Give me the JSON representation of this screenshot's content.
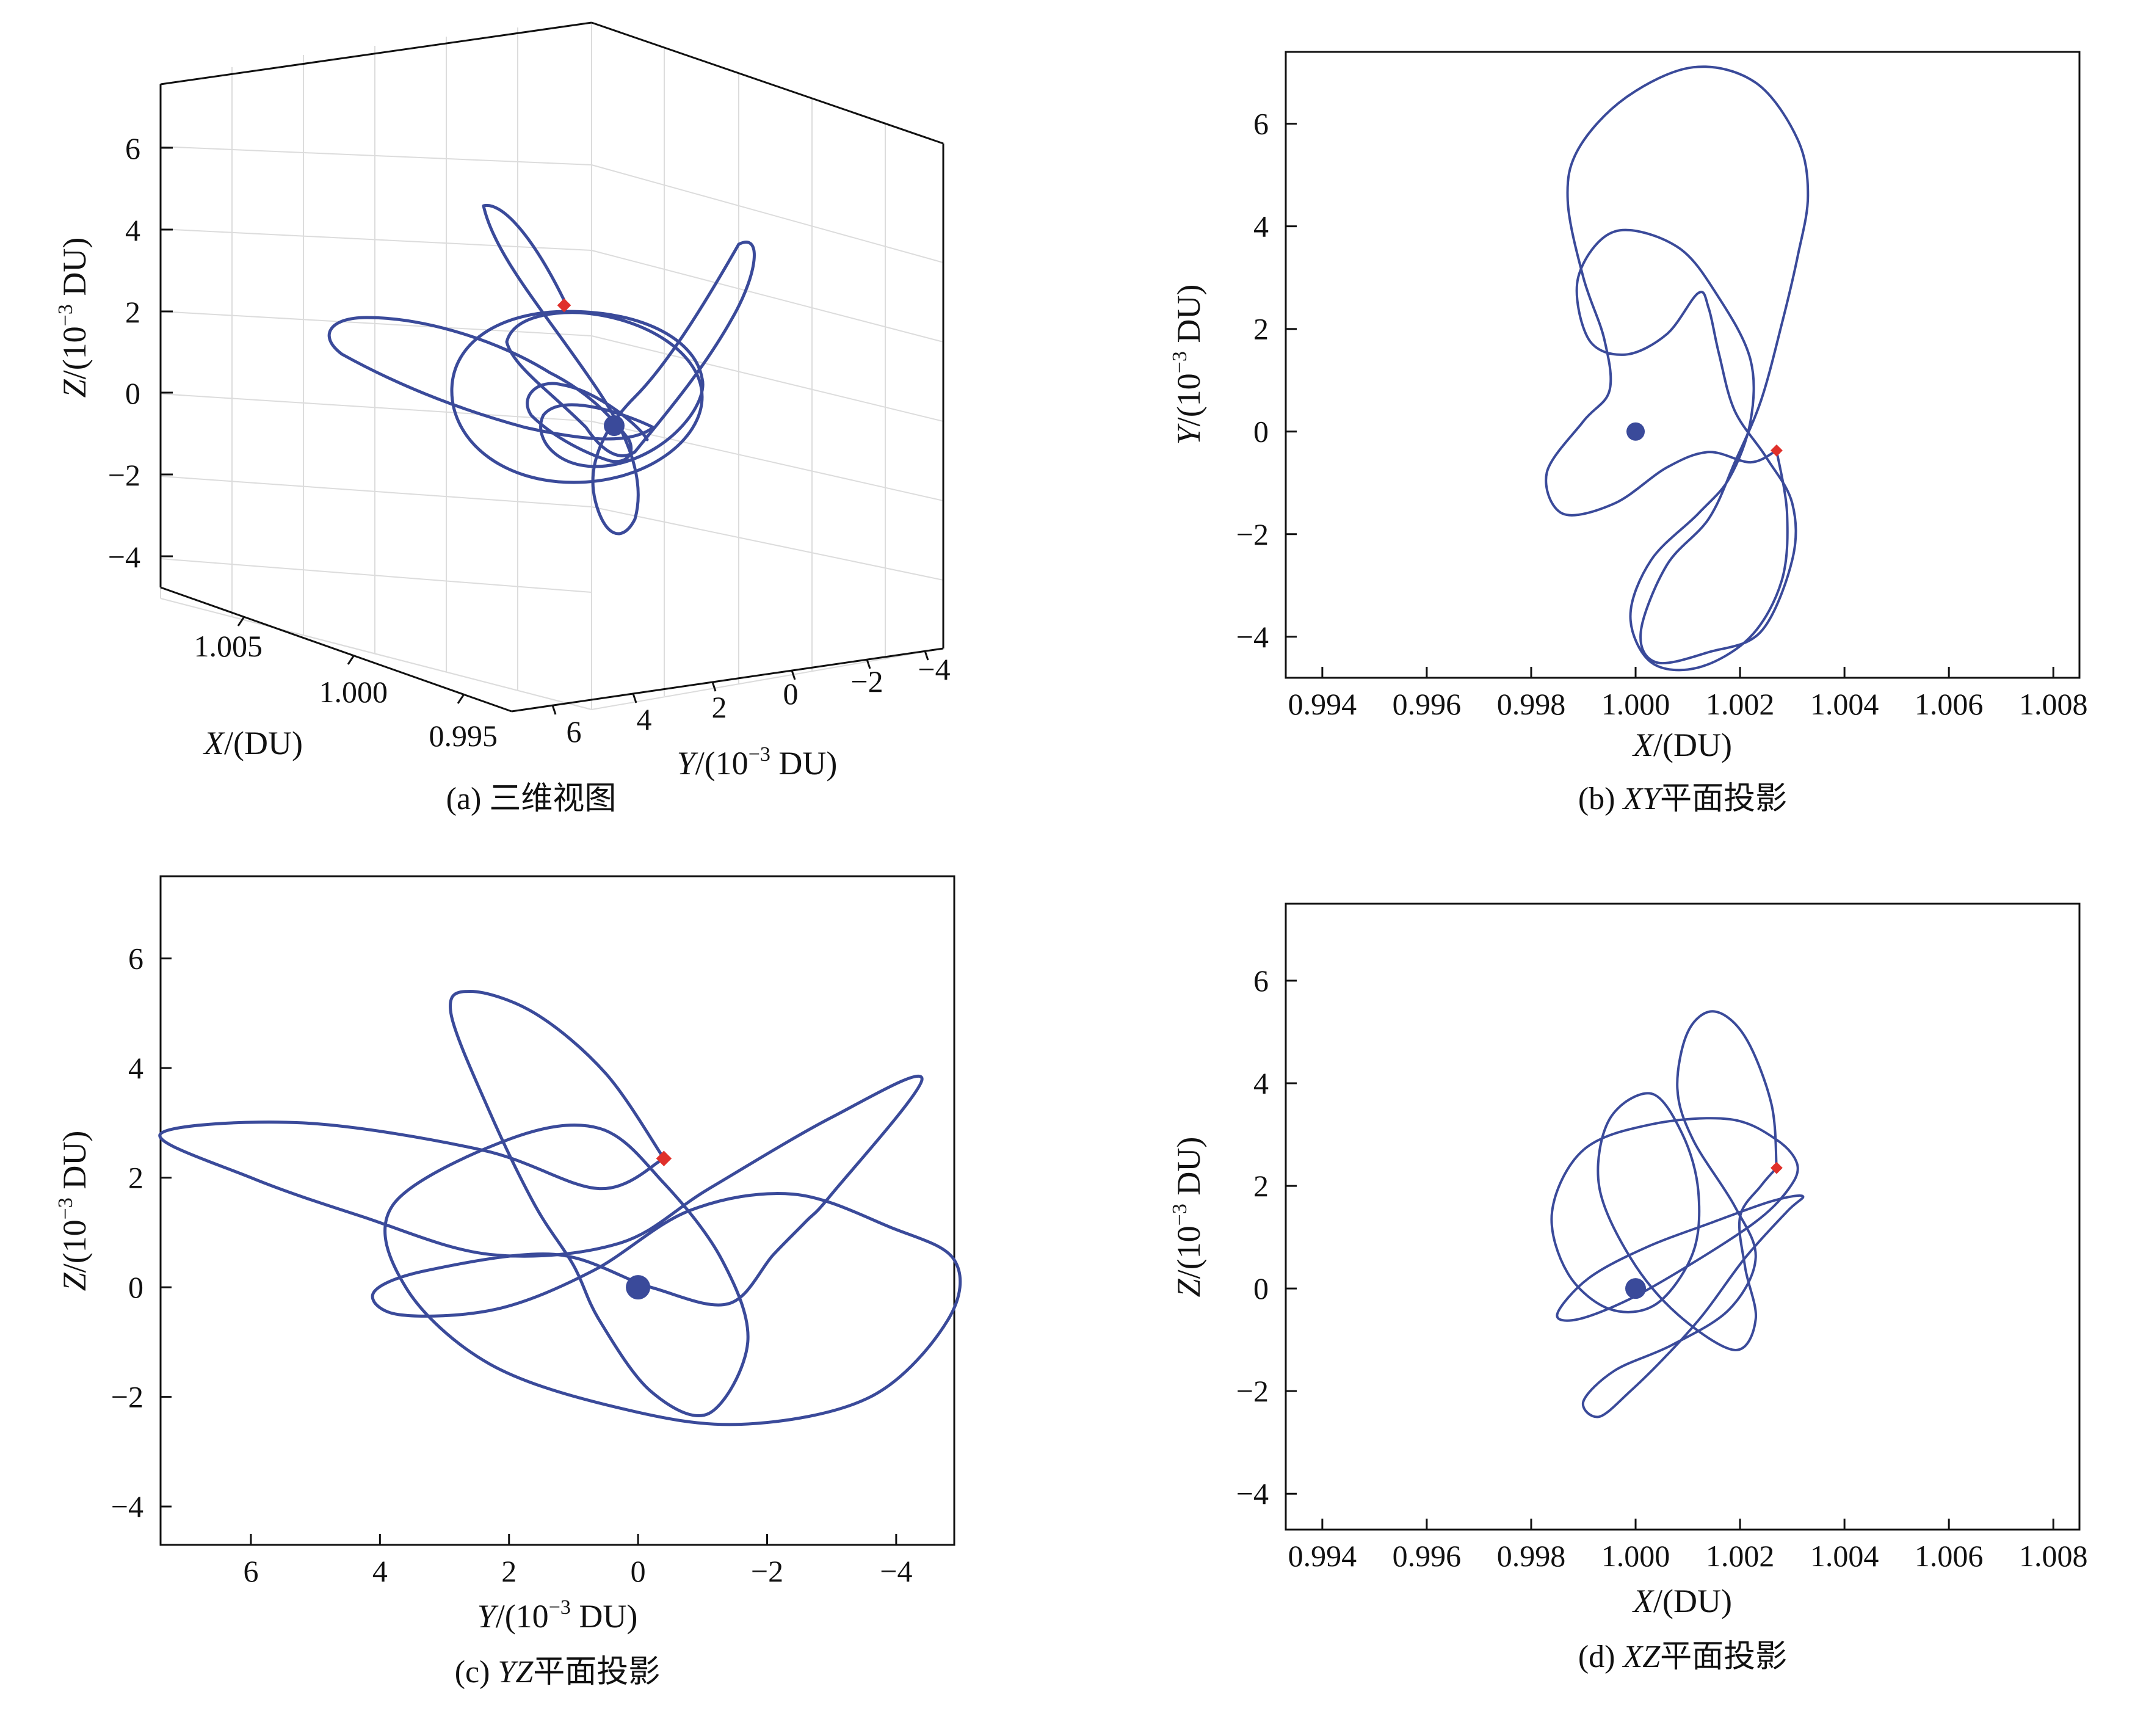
{
  "figure": {
    "panels": {
      "a": {
        "caption_prefix": "(a) ",
        "caption_text": "三维视图",
        "x_label_var": "X",
        "x_label_unit": "/(DU)",
        "y_label_var": "Y",
        "y_label_unit_pre": "/(10",
        "y_label_exp": "−3",
        "y_label_unit_post": " DU)",
        "z_label_var": "Z",
        "z_label_unit_pre": "/(10",
        "z_label_exp": "−3",
        "z_label_unit_post": " DU)",
        "z_ticks": [
          "6",
          "4",
          "2",
          "0",
          "−2",
          "−4"
        ],
        "x_ticks": [
          "1.005",
          "1.000",
          "0.995"
        ],
        "y_ticks": [
          "6",
          "4",
          "2",
          "0",
          "−2",
          "−4"
        ]
      },
      "b": {
        "caption_prefix": "(b) ",
        "caption_var": "XY",
        "caption_text": "平面投影",
        "x_label_var": "X",
        "x_label_unit": "/(DU)",
        "y_label_var": "Y",
        "y_label_unit_pre": "/(10",
        "y_label_exp": "−3",
        "y_label_unit_post": " DU)",
        "x_ticks": [
          "0.994",
          "0.996",
          "0.998",
          "1.000",
          "1.002",
          "1.004",
          "1.006",
          "1.008"
        ],
        "y_ticks": [
          "6",
          "4",
          "2",
          "0",
          "−2",
          "−4"
        ]
      },
      "c": {
        "caption_prefix": "(c) ",
        "caption_var": "YZ",
        "caption_text": "平面投影",
        "x_label_var": "Y",
        "x_label_unit_pre": "/(10",
        "x_label_exp": "−3",
        "x_label_unit_post": " DU)",
        "y_label_var": "Z",
        "y_label_unit_pre": "/(10",
        "y_label_exp": "−3",
        "y_label_unit_post": " DU)",
        "x_ticks": [
          "6",
          "4",
          "2",
          "0",
          "−2",
          "−4"
        ],
        "y_ticks": [
          "6",
          "4",
          "2",
          "0",
          "−2",
          "−4"
        ]
      },
      "d": {
        "caption_prefix": "(d) ",
        "caption_var": "XZ",
        "caption_text": "平面投影",
        "x_label_var": "X",
        "x_label_unit": "/(DU)",
        "y_label_var": "Z",
        "y_label_unit_pre": "/(10",
        "y_label_exp": "−3",
        "y_label_unit_post": " DU)",
        "x_ticks": [
          "0.994",
          "0.996",
          "0.998",
          "1.000",
          "1.002",
          "1.004",
          "1.006",
          "1.008"
        ],
        "y_ticks": [
          "6",
          "4",
          "2",
          "0",
          "−2",
          "−4"
        ]
      }
    },
    "colors": {
      "orbit": "#3a4a9a",
      "start_marker": "#e0302a",
      "central_body": "#3a4a9a"
    }
  },
  "chart_data": [
    {
      "type": "line",
      "panel": "a",
      "title": "(a) 三维视图",
      "xlabel": "X/(DU)",
      "ylabel": "Y/(10−3 DU)",
      "zlabel": "Z/(10−3 DU)",
      "xlim": [
        0.995,
        1.007
      ],
      "ylim": [
        6.5,
        -4.5
      ],
      "zlim": [
        -4.7,
        7.5
      ],
      "grid": true,
      "projection": "3d",
      "central_body": {
        "x": 1.0,
        "y": 0.0,
        "z": 0.0
      },
      "start_point": {
        "x": 1.0027,
        "y": -0.4,
        "z": 2.35
      }
    },
    {
      "type": "line",
      "panel": "b",
      "title": "(b) XY平面投影",
      "xlabel": "X/(DU)",
      "ylabel": "Y/(10−3 DU)",
      "xlim": [
        0.9933,
        1.0085
      ],
      "ylim": [
        -4.8,
        7.4
      ],
      "grid": false,
      "central_body": {
        "x": 1.0,
        "y": 0.0
      },
      "start_point": {
        "x": 1.0027,
        "y": -0.37
      },
      "series": [
        {
          "values": [
            [
              1.0027,
              -0.37
            ],
            [
              1.0029,
              -1.6
            ],
            [
              1.0028,
              -2.9
            ],
            [
              1.0022,
              -4.0
            ],
            [
              1.0012,
              -4.6
            ],
            [
              1.0003,
              -4.5
            ],
            [
              0.9999,
              -3.6
            ],
            [
              1.0003,
              -2.5
            ],
            [
              1.0012,
              -1.6
            ],
            [
              1.0018,
              -0.9
            ],
            [
              1.0022,
              0.2
            ],
            [
              1.0022,
              1.4
            ],
            [
              1.0016,
              2.6
            ],
            [
              1.0008,
              3.6
            ],
            [
              0.9996,
              3.9
            ],
            [
              0.9989,
              3.0
            ],
            [
              0.9991,
              1.8
            ],
            [
              0.9998,
              1.5
            ],
            [
              1.0006,
              1.9
            ],
            [
              1.0012,
              2.7
            ],
            [
              1.0014,
              2.4
            ],
            [
              1.0016,
              1.5
            ],
            [
              1.0019,
              0.4
            ],
            [
              1.0025,
              -0.5
            ],
            [
              1.003,
              -1.4
            ],
            [
              1.003,
              -2.5
            ],
            [
              1.0024,
              -3.9
            ],
            [
              1.0014,
              -4.3
            ],
            [
              1.0004,
              -4.5
            ],
            [
              1.0001,
              -3.9
            ],
            [
              1.0006,
              -2.6
            ],
            [
              1.0014,
              -1.7
            ],
            [
              1.0019,
              -0.6
            ],
            [
              1.0024,
              0.6
            ],
            [
              1.0028,
              2.1
            ],
            [
              1.0031,
              3.4
            ],
            [
              1.0033,
              4.6
            ],
            [
              1.0031,
              5.7
            ],
            [
              1.0023,
              6.8
            ],
            [
              1.0011,
              7.1
            ],
            [
              0.9998,
              6.5
            ],
            [
              0.9989,
              5.5
            ],
            [
              0.9987,
              4.5
            ],
            [
              0.999,
              3.0
            ],
            [
              0.9994,
              1.8
            ],
            [
              0.9995,
              0.8
            ],
            [
              0.999,
              0.2
            ],
            [
              0.9983,
              -0.8
            ],
            [
              0.9986,
              -1.6
            ],
            [
              0.9996,
              -1.4
            ],
            [
              1.0006,
              -0.7
            ],
            [
              1.0014,
              -0.4
            ],
            [
              1.0022,
              -0.6
            ],
            [
              1.0027,
              -0.37
            ]
          ]
        }
      ]
    },
    {
      "type": "line",
      "panel": "c",
      "title": "(c) YZ平面投影",
      "xlabel": "Y/(10−3 DU)",
      "ylabel": "Z/(10−3 DU)",
      "xlim": [
        7.4,
        -4.9
      ],
      "ylim": [
        -4.7,
        7.5
      ],
      "grid": false,
      "central_body": {
        "y": 0.0,
        "z": 0.0
      },
      "start_point": {
        "y": -0.4,
        "z": 2.35
      },
      "series": [
        {
          "values": [
            [
              -0.4,
              2.35
            ],
            [
              0.5,
              3.9
            ],
            [
              1.6,
              5.0
            ],
            [
              2.6,
              5.4
            ],
            [
              2.9,
              5.0
            ],
            [
              2.3,
              3.2
            ],
            [
              1.6,
              1.5
            ],
            [
              1.0,
              0.4
            ],
            [
              0.6,
              -0.6
            ],
            [
              -0.2,
              -1.9
            ],
            [
              -1.1,
              -2.3
            ],
            [
              -1.7,
              -1.0
            ],
            [
              -1.3,
              0.5
            ],
            [
              -0.4,
              1.9
            ],
            [
              0.6,
              2.9
            ],
            [
              2.0,
              2.7
            ],
            [
              3.8,
              1.5
            ],
            [
              3.6,
              0.0
            ],
            [
              2.3,
              -1.4
            ],
            [
              0.3,
              -2.2
            ],
            [
              -1.6,
              -2.5
            ],
            [
              -3.6,
              -2.0
            ],
            [
              -4.8,
              -0.6
            ],
            [
              -4.9,
              0.5
            ],
            [
              -3.9,
              1.1
            ],
            [
              -2.4,
              1.7
            ],
            [
              -0.8,
              1.4
            ],
            [
              0.7,
              0.3
            ],
            [
              2.2,
              -0.4
            ],
            [
              3.7,
              -0.5
            ],
            [
              4.1,
              -0.1
            ],
            [
              3.3,
              0.3
            ],
            [
              1.3,
              0.6
            ],
            [
              -0.2,
              0.0
            ],
            [
              -1.4,
              -0.3
            ],
            [
              -2.1,
              0.6
            ],
            [
              -2.6,
              1.2
            ],
            [
              -3.0,
              1.7
            ],
            [
              -4.4,
              3.8
            ],
            [
              -3.0,
              3.1
            ],
            [
              -1.1,
              1.8
            ],
            [
              0.3,
              0.8
            ],
            [
              2.3,
              0.6
            ],
            [
              4.3,
              1.3
            ],
            [
              6.0,
              2.0
            ],
            [
              7.4,
              2.8
            ],
            [
              5.2,
              3.0
            ],
            [
              2.4,
              2.5
            ],
            [
              0.6,
              1.8
            ],
            [
              -0.4,
              2.35
            ]
          ]
        }
      ]
    },
    {
      "type": "line",
      "panel": "d",
      "title": "(d) XZ平面投影",
      "xlabel": "X/(DU)",
      "ylabel": "Z/(10−3 DU)",
      "xlim": [
        0.9933,
        1.0085
      ],
      "ylim": [
        -4.7,
        7.5
      ],
      "grid": false,
      "central_body": {
        "x": 1.0,
        "z": 0.0
      },
      "start_point": {
        "x": 1.0027,
        "z": 2.35
      },
      "series": [
        {
          "values": [
            [
              1.0027,
              2.35
            ],
            [
              1.0026,
              3.6
            ],
            [
              1.0021,
              4.9
            ],
            [
              1.0015,
              5.4
            ],
            [
              1.001,
              5.0
            ],
            [
              1.0008,
              3.9
            ],
            [
              1.0011,
              2.9
            ],
            [
              1.0019,
              1.6
            ],
            [
              1.0023,
              0.6
            ],
            [
              1.0018,
              -0.4
            ],
            [
              1.0007,
              -1.1
            ],
            [
              0.9996,
              -1.6
            ],
            [
              0.999,
              -2.2
            ],
            [
              0.9993,
              -2.5
            ],
            [
              0.9999,
              -2.0
            ],
            [
              1.0006,
              -1.3
            ],
            [
              1.0013,
              -0.5
            ],
            [
              1.0021,
              0.6
            ],
            [
              1.0029,
              1.5
            ],
            [
              1.0032,
              1.8
            ],
            [
              1.0026,
              1.7
            ],
            [
              1.0015,
              1.3
            ],
            [
              1.0002,
              0.8
            ],
            [
              0.9991,
              0.2
            ],
            [
              0.9985,
              -0.5
            ],
            [
              0.9989,
              -0.6
            ],
            [
              0.9999,
              -0.2
            ],
            [
              1.0011,
              0.5
            ],
            [
              1.0023,
              1.3
            ],
            [
              1.0029,
              1.9
            ],
            [
              1.0031,
              2.4
            ],
            [
              1.0027,
              2.9
            ],
            [
              1.0018,
              3.3
            ],
            [
              1.0003,
              3.2
            ],
            [
              0.999,
              2.7
            ],
            [
              0.9984,
              1.5
            ],
            [
              0.9987,
              0.3
            ],
            [
              0.9995,
              -0.4
            ],
            [
              1.0004,
              -0.3
            ],
            [
              1.0011,
              0.7
            ],
            [
              1.0012,
              1.9
            ],
            [
              1.0009,
              3.0
            ],
            [
              1.0003,
              3.8
            ],
            [
              0.9995,
              3.3
            ],
            [
              0.9993,
              2.0
            ],
            [
              0.9999,
              0.6
            ],
            [
              1.0008,
              -0.5
            ],
            [
              1.0019,
              -1.2
            ],
            [
              1.0023,
              -0.6
            ],
            [
              1.0021,
              0.4
            ],
            [
              1.002,
              1.4
            ],
            [
              1.0024,
              2.0
            ],
            [
              1.0027,
              2.35
            ]
          ]
        }
      ]
    }
  ]
}
